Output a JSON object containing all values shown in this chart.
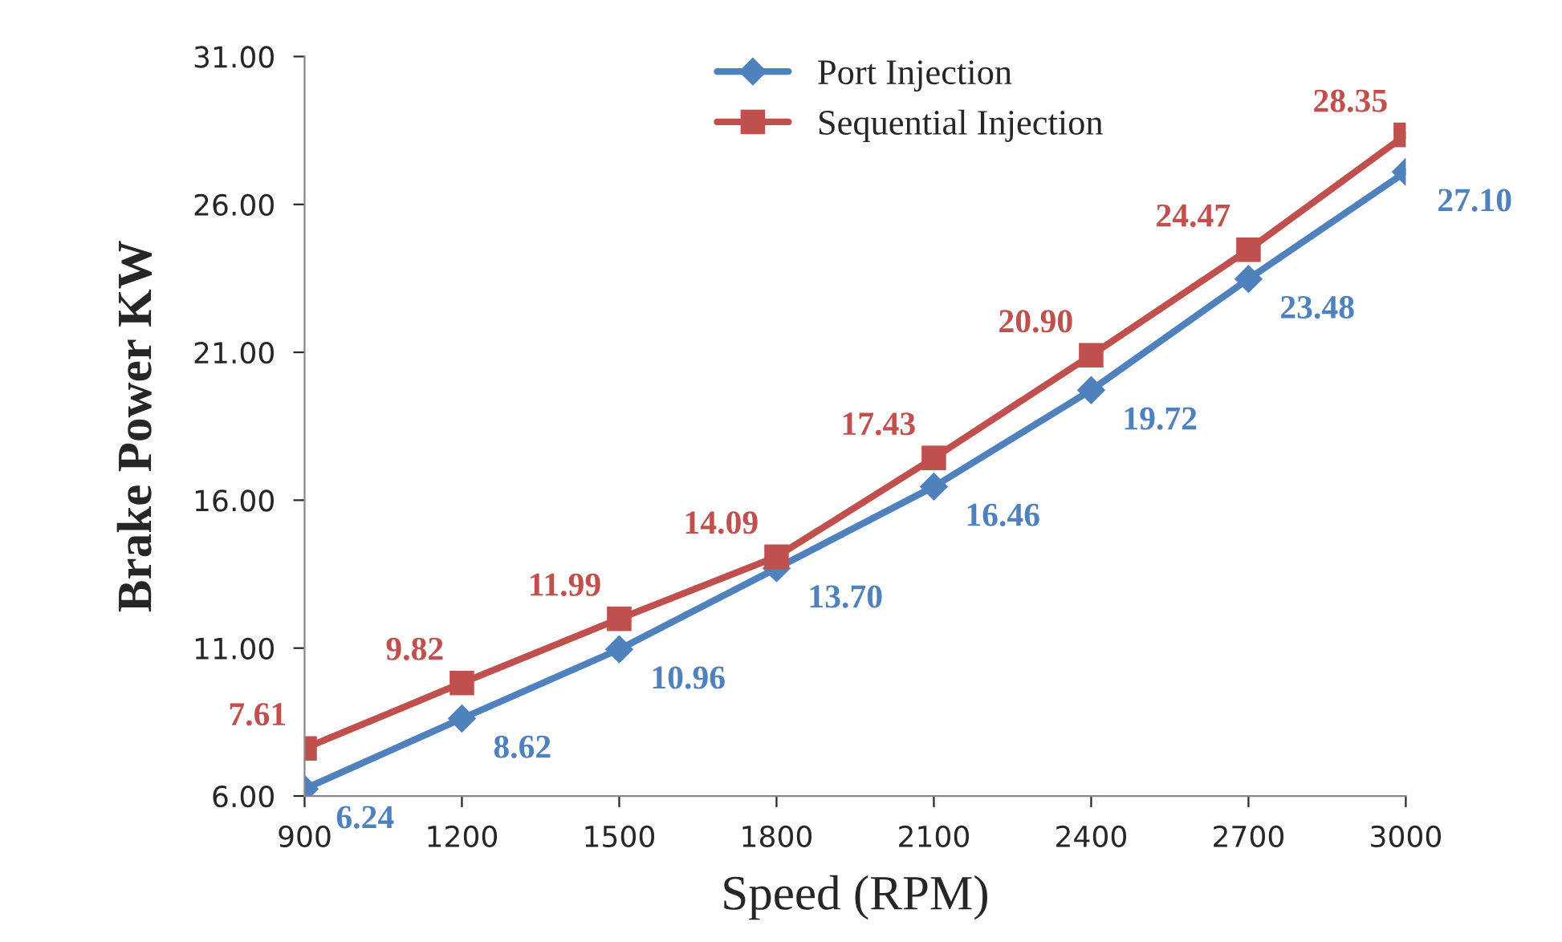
{
  "chart_data": {
    "type": "line",
    "xlabel": "Speed (RPM)",
    "ylabel": "Brake Power KW",
    "x": [
      900,
      1200,
      1500,
      1800,
      2100,
      2400,
      2700,
      3000
    ],
    "xlim": [
      900,
      3000
    ],
    "xticks": [
      900,
      1200,
      1500,
      1800,
      2100,
      2400,
      2700,
      3000
    ],
    "ylim": [
      6,
      31
    ],
    "yticks": [
      {
        "value": 6,
        "label": "6.00"
      },
      {
        "value": 11,
        "label": "11.00"
      },
      {
        "value": 16,
        "label": "16.00"
      },
      {
        "value": 21,
        "label": "21.00"
      },
      {
        "value": 26,
        "label": "26.00"
      },
      {
        "value": 31,
        "label": "31.00"
      }
    ],
    "series": [
      {
        "name": "Port Injection",
        "color": "#4f81bd",
        "marker": "diamond",
        "values": [
          6.24,
          8.62,
          10.96,
          13.7,
          16.46,
          19.72,
          23.48,
          27.1
        ],
        "value_labels": [
          "6.24",
          "8.62",
          "10.96",
          "13.70",
          "16.46",
          "19.72",
          "23.48",
          "27.10"
        ]
      },
      {
        "name": "Sequential Injection",
        "color": "#c0504d",
        "marker": "square",
        "values": [
          7.61,
          9.82,
          11.99,
          14.09,
          17.43,
          20.9,
          24.47,
          28.35
        ],
        "value_labels": [
          "7.61",
          "9.82",
          "11.99",
          "14.09",
          "17.43",
          "20.90",
          "24.47",
          "28.35"
        ]
      }
    ],
    "legend": "top",
    "grid": false,
    "line_style": "solid"
  }
}
